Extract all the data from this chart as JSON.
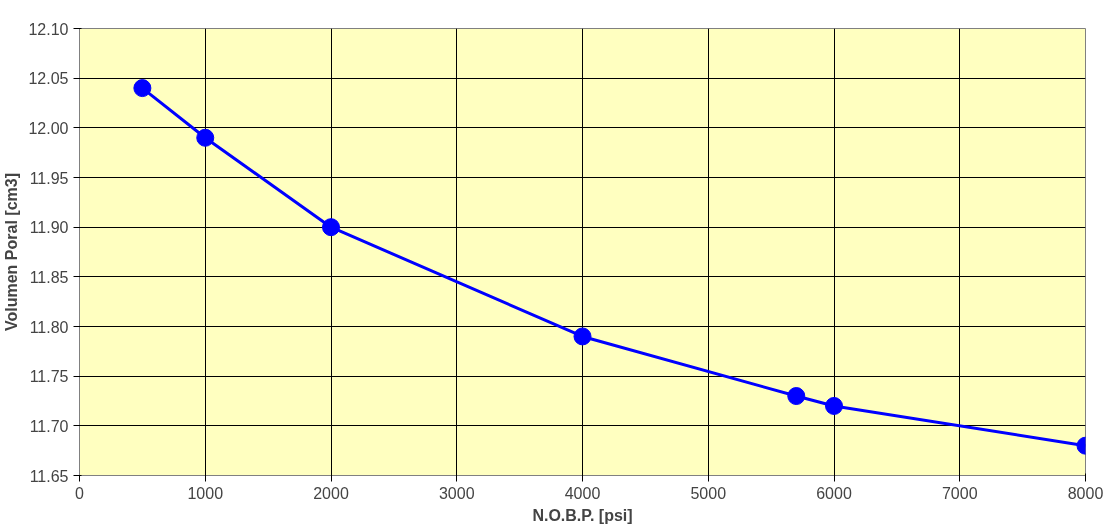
{
  "chart_data": {
    "type": "line",
    "xlabel": "N.O.B.P. [psi]",
    "ylabel": "Volumen Poral [cm3]",
    "x": [
      500,
      1000,
      2000,
      4000,
      5700,
      6000,
      8000
    ],
    "series": [
      {
        "color": "#0000ff",
        "values": [
          12.04,
          11.99,
          11.9,
          11.79,
          11.73,
          11.72,
          11.68
        ]
      }
    ],
    "xlim": [
      0,
      8000
    ],
    "xticks": [
      0,
      1000,
      2000,
      3000,
      4000,
      5000,
      6000,
      7000,
      8000
    ],
    "ylim": [
      11.65,
      12.1
    ],
    "yticks": [
      {
        "value": 11.65,
        "label": "11.65"
      },
      {
        "value": 11.7,
        "label": "11.70"
      },
      {
        "value": 11.75,
        "label": "11.75"
      },
      {
        "value": 11.8,
        "label": "11.80"
      },
      {
        "value": 11.85,
        "label": "11.85"
      },
      {
        "value": 11.9,
        "label": "11.90"
      },
      {
        "value": 11.95,
        "label": "11.95"
      },
      {
        "value": 12.0,
        "label": "12.00"
      },
      {
        "value": 12.05,
        "label": "12.05"
      },
      {
        "value": 12.1,
        "label": "12.10"
      }
    ],
    "grid": true,
    "marker": "circle",
    "line_style": "solid"
  }
}
